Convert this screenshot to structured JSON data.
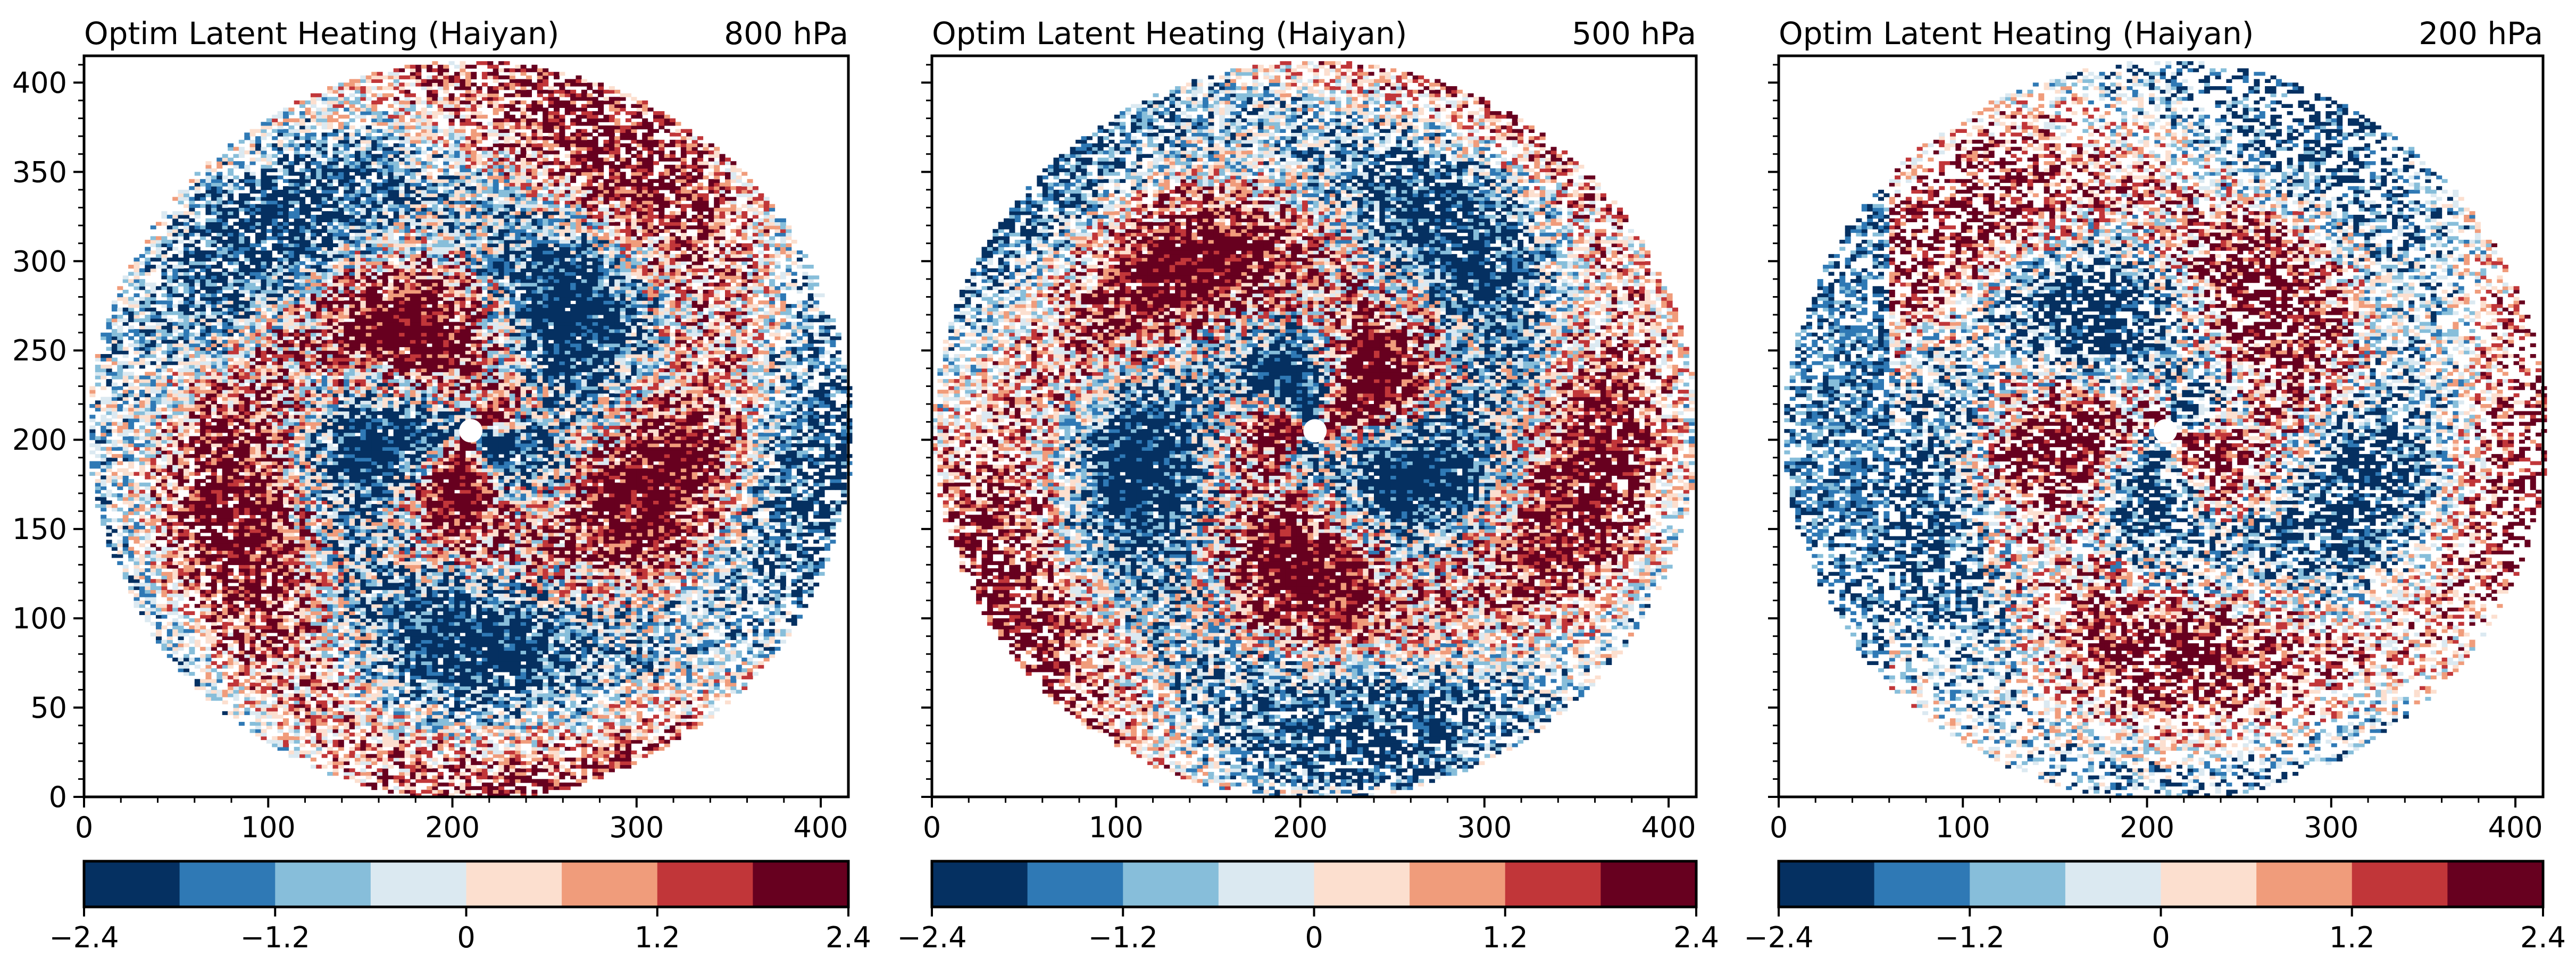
{
  "chart_data": [
    {
      "type": "heatmap",
      "title": "Optim Latent Heating (Haiyan)",
      "level_label": "800 hPa",
      "xlim": [
        0,
        415
      ],
      "ylim": [
        0,
        415
      ],
      "x_ticks": [
        "0",
        "100",
        "200",
        "300",
        "400"
      ],
      "y_ticks": [
        "0",
        "50",
        "100",
        "150",
        "200",
        "250",
        "300",
        "350",
        "400"
      ],
      "storm_center": [
        210,
        205
      ],
      "domain_radius": 207,
      "colorbar": {
        "range": [
          -2.4,
          2.4
        ],
        "bins": 8,
        "tick_labels": [
          "−2.4",
          "−1.2",
          "0",
          "1.2",
          "2.4"
        ]
      }
    },
    {
      "type": "heatmap",
      "title": "Optim Latent Heating (Haiyan)",
      "level_label": "500 hPa",
      "xlim": [
        0,
        415
      ],
      "ylim": [
        0,
        415
      ],
      "x_ticks": [
        "0",
        "100",
        "200",
        "300",
        "400"
      ],
      "y_ticks": [],
      "storm_center": [
        208,
        205
      ],
      "domain_radius": 207,
      "colorbar": {
        "range": [
          -2.4,
          2.4
        ],
        "bins": 8,
        "tick_labels": [
          "−2.4",
          "−1.2",
          "0",
          "1.2",
          "2.4"
        ]
      }
    },
    {
      "type": "heatmap",
      "title": "Optim Latent Heating (Haiyan)",
      "level_label": "200 hPa",
      "xlim": [
        0,
        415
      ],
      "ylim": [
        0,
        415
      ],
      "x_ticks": [
        "0",
        "100",
        "200",
        "300",
        "400"
      ],
      "y_ticks": [],
      "storm_center": [
        210,
        205
      ],
      "domain_radius": 207,
      "colorbar": {
        "range": [
          -2.4,
          2.4
        ],
        "bins": 8,
        "tick_labels": [
          "−2.4",
          "−1.2",
          "0",
          "1.2",
          "2.4"
        ]
      }
    }
  ],
  "colors": [
    "#053061",
    "#2f79b5",
    "#87beda",
    "#dbe9f1",
    "#fcdfcf",
    "#f09c7b",
    "#c13639",
    "#67001f"
  ]
}
